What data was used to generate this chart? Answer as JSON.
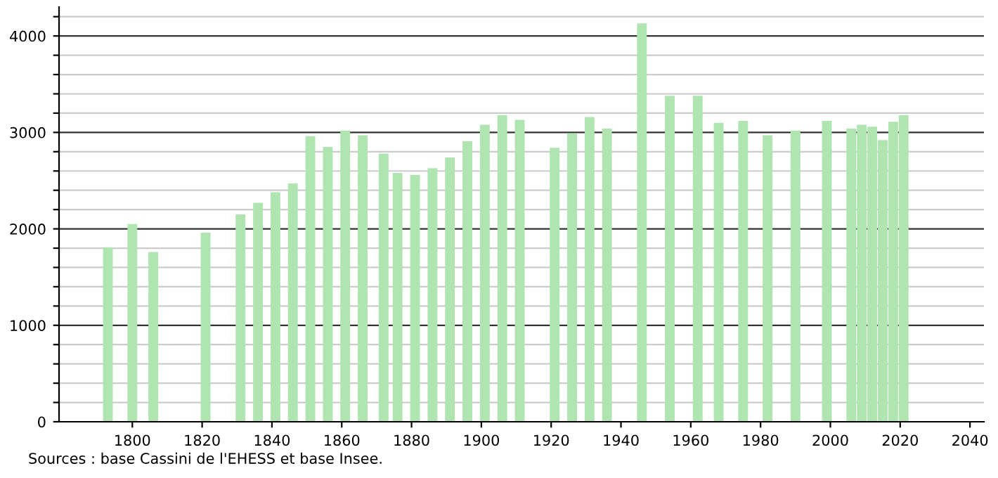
{
  "chart_data": {
    "type": "bar",
    "color": "#b0e4b0",
    "x": [
      1793,
      1800,
      1806,
      1821,
      1831,
      1836,
      1841,
      1846,
      1851,
      1856,
      1861,
      1866,
      1872,
      1876,
      1881,
      1886,
      1891,
      1896,
      1901,
      1906,
      1911,
      1921,
      1926,
      1931,
      1936,
      1946,
      1954,
      1962,
      1968,
      1975,
      1982,
      1990,
      1999,
      2006,
      2009,
      2012,
      2015,
      2018,
      2021
    ],
    "values": [
      1810,
      2050,
      1760,
      1960,
      2150,
      2270,
      2380,
      2470,
      2960,
      2850,
      3020,
      2970,
      2780,
      2580,
      2560,
      2630,
      2740,
      2910,
      3080,
      3180,
      3130,
      2840,
      2990,
      3160,
      3040,
      4130,
      3380,
      3380,
      3100,
      3120,
      2970,
      3020,
      3120,
      3040,
      3080,
      3060,
      2920,
      3110,
      3180
    ],
    "xlim": [
      1779,
      2044
    ],
    "xticks": [
      1800,
      1820,
      1840,
      1860,
      1880,
      1900,
      1920,
      1940,
      1960,
      1980,
      2000,
      2020,
      2040
    ],
    "ylim": [
      0,
      4300
    ],
    "yticks": [
      0,
      {
        "value": 200,
        "label": null
      },
      {
        "value": 400,
        "label": null
      },
      {
        "value": 600,
        "label": null
      },
      {
        "value": 800,
        "label": null
      },
      1000,
      {
        "value": 1200,
        "label": null
      },
      {
        "value": 1400,
        "label": null
      },
      {
        "value": 1600,
        "label": null
      },
      {
        "value": 1800,
        "label": null
      },
      2000,
      {
        "value": 2200,
        "label": null
      },
      {
        "value": 2400,
        "label": null
      },
      {
        "value": 2600,
        "label": null
      },
      {
        "value": 2800,
        "label": null
      },
      3000,
      {
        "value": 3200,
        "label": null
      },
      {
        "value": 3400,
        "label": null
      },
      {
        "value": 3600,
        "label": null
      },
      {
        "value": 3800,
        "label": null
      },
      4000,
      {
        "value": 4200,
        "label": null
      }
    ],
    "grid": "y",
    "annotations": [
      "Sources : base Cassini de l'EHESS et base Insee."
    ]
  }
}
